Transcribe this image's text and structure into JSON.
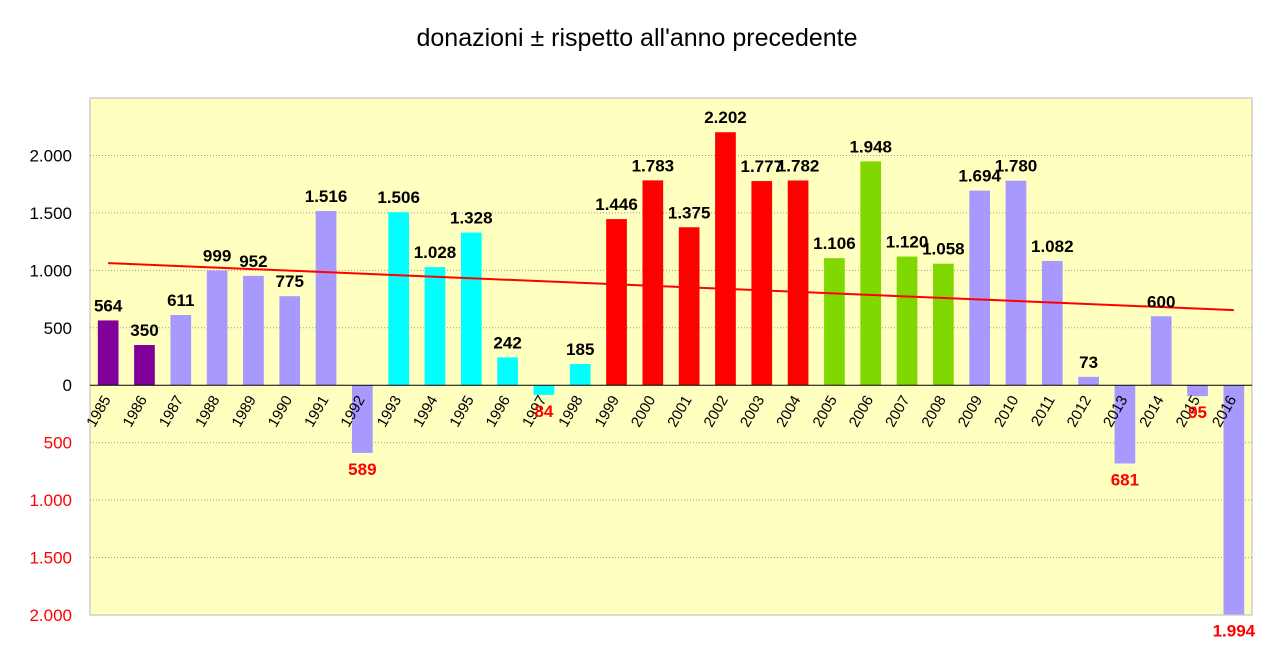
{
  "chart_data": {
    "type": "bar",
    "title": "donazioni ± rispetto all'anno precedente",
    "xlabel": "",
    "ylabel": "",
    "ylim": [
      -2000,
      2500
    ],
    "grid": true,
    "legend": "none",
    "background": "#ffffc0",
    "y_ticks": [
      {
        "value": 2000,
        "label": "2.000",
        "color": "#000000"
      },
      {
        "value": 1500,
        "label": "1.500",
        "color": "#000000"
      },
      {
        "value": 1000,
        "label": "1.000",
        "color": "#000000"
      },
      {
        "value": 500,
        "label": "500",
        "color": "#000000"
      },
      {
        "value": 0,
        "label": "0",
        "color": "#000000"
      },
      {
        "value": -500,
        "label": "500",
        "color": "#ff0000"
      },
      {
        "value": -1000,
        "label": "1.000",
        "color": "#ff0000"
      },
      {
        "value": -1500,
        "label": "1.500",
        "color": "#ff0000"
      },
      {
        "value": -2000,
        "label": "2.000",
        "color": "#ff0000"
      }
    ],
    "bars": [
      {
        "year": "1985",
        "value": 564,
        "label": "564",
        "color": "#800099"
      },
      {
        "year": "1986",
        "value": 350,
        "label": "350",
        "color": "#800099"
      },
      {
        "year": "1987",
        "value": 611,
        "label": "611",
        "color": "#a899ff"
      },
      {
        "year": "1988",
        "value": 999,
        "label": "999",
        "color": "#a899ff"
      },
      {
        "year": "1989",
        "value": 952,
        "label": "952",
        "color": "#a899ff"
      },
      {
        "year": "1990",
        "value": 775,
        "label": "775",
        "color": "#a899ff"
      },
      {
        "year": "1991",
        "value": 1516,
        "label": "1.516",
        "color": "#a899ff"
      },
      {
        "year": "1992",
        "value": -589,
        "label": "589",
        "color": "#a899ff"
      },
      {
        "year": "1993",
        "value": 1506,
        "label": "1.506",
        "color": "#00ffff"
      },
      {
        "year": "1994",
        "value": 1028,
        "label": "1.028",
        "color": "#00ffff"
      },
      {
        "year": "1995",
        "value": 1328,
        "label": "1.328",
        "color": "#00ffff"
      },
      {
        "year": "1996",
        "value": 242,
        "label": "242",
        "color": "#00ffff"
      },
      {
        "year": "1997",
        "value": -84,
        "label": "84",
        "color": "#00ffff"
      },
      {
        "year": "1998",
        "value": 185,
        "label": "185",
        "color": "#00ffff"
      },
      {
        "year": "1999",
        "value": 1446,
        "label": "1.446",
        "color": "#ff0000"
      },
      {
        "year": "2000",
        "value": 1783,
        "label": "1.783",
        "color": "#ff0000"
      },
      {
        "year": "2001",
        "value": 1375,
        "label": "1.375",
        "color": "#ff0000"
      },
      {
        "year": "2002",
        "value": 2202,
        "label": "2.202",
        "color": "#ff0000"
      },
      {
        "year": "2003",
        "value": 1777,
        "label": "1.777",
        "color": "#ff0000"
      },
      {
        "year": "2004",
        "value": 1782,
        "label": "1.782",
        "color": "#ff0000"
      },
      {
        "year": "2005",
        "value": 1106,
        "label": "1.106",
        "color": "#80d800"
      },
      {
        "year": "2006",
        "value": 1948,
        "label": "1.948",
        "color": "#80d800"
      },
      {
        "year": "2007",
        "value": 1120,
        "label": "1.120",
        "color": "#80d800"
      },
      {
        "year": "2008",
        "value": 1058,
        "label": "1.058",
        "color": "#80d800"
      },
      {
        "year": "2009",
        "value": 1694,
        "label": "1.694",
        "color": "#a899ff"
      },
      {
        "year": "2010",
        "value": 1780,
        "label": "1.780",
        "color": "#a899ff"
      },
      {
        "year": "2011",
        "value": 1082,
        "label": "1.082",
        "color": "#a899ff"
      },
      {
        "year": "2012",
        "value": 73,
        "label": "73",
        "color": "#a899ff"
      },
      {
        "year": "2013",
        "value": -681,
        "label": "681",
        "color": "#a899ff"
      },
      {
        "year": "2014",
        "value": 600,
        "label": "600",
        "color": "#a899ff"
      },
      {
        "year": "2015",
        "value": -95,
        "label": "95",
        "color": "#a899ff"
      },
      {
        "year": "2016",
        "value": -1994,
        "label": "1.994",
        "color": "#a899ff"
      }
    ],
    "trendline": {
      "type": "linear",
      "color": "#ff0000",
      "start": 1063,
      "end": 654
    },
    "label_colors": {
      "positive": "#000000",
      "negative": "#ff0000"
    }
  }
}
